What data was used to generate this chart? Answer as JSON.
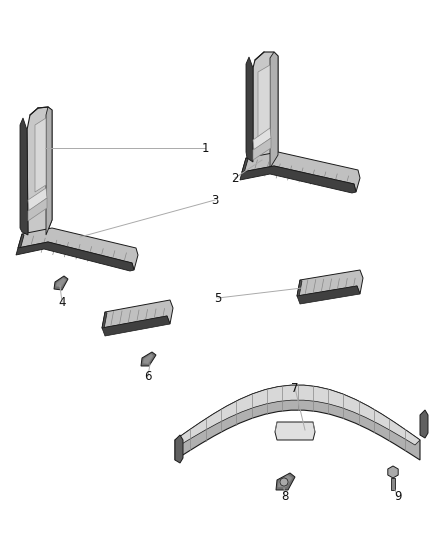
{
  "background_color": "#ffffff",
  "fig_width": 4.38,
  "fig_height": 5.33,
  "dpi": 100,
  "line_color": "#aaaaaa",
  "label_fontsize": 8.5,
  "label_color": "#111111",
  "dark": "#1a1a1a",
  "mid": "#888888",
  "light": "#dddddd",
  "strip_dark": "#333333",
  "strip_mid": "#888888",
  "strip_light": "#cccccc"
}
